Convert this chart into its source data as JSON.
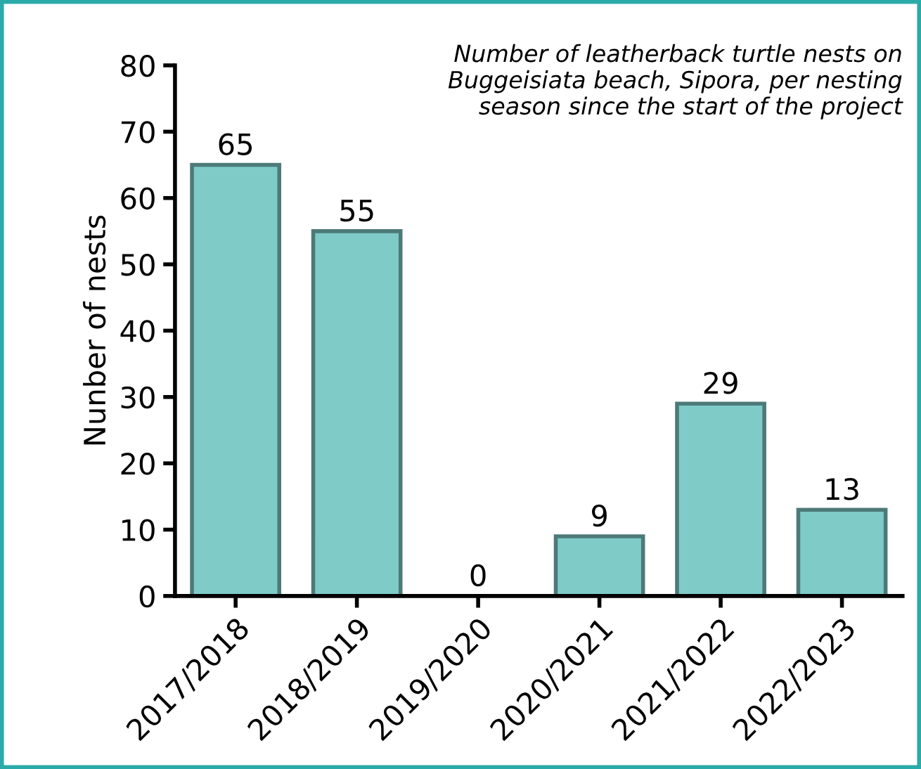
{
  "chart_data": {
    "type": "bar",
    "title": "Number of leatherback turtle nests on\nBuggeisiata beach, Sipora, per nesting\nseason since the start of the project",
    "ylabel": "Nunber of nests",
    "categories": [
      "2017/2018",
      "2018/2019",
      "2019/2020",
      "2020/2021",
      "2021/2022",
      "2022/2023"
    ],
    "values": [
      65,
      55,
      0,
      9,
      29,
      13
    ],
    "color": "#7ecbc8",
    "ylim": [
      0,
      80
    ],
    "yticks": [
      0,
      10,
      20,
      30,
      40,
      50,
      60,
      70,
      80
    ],
    "data_labels": true,
    "grid": false,
    "legend": false
  }
}
